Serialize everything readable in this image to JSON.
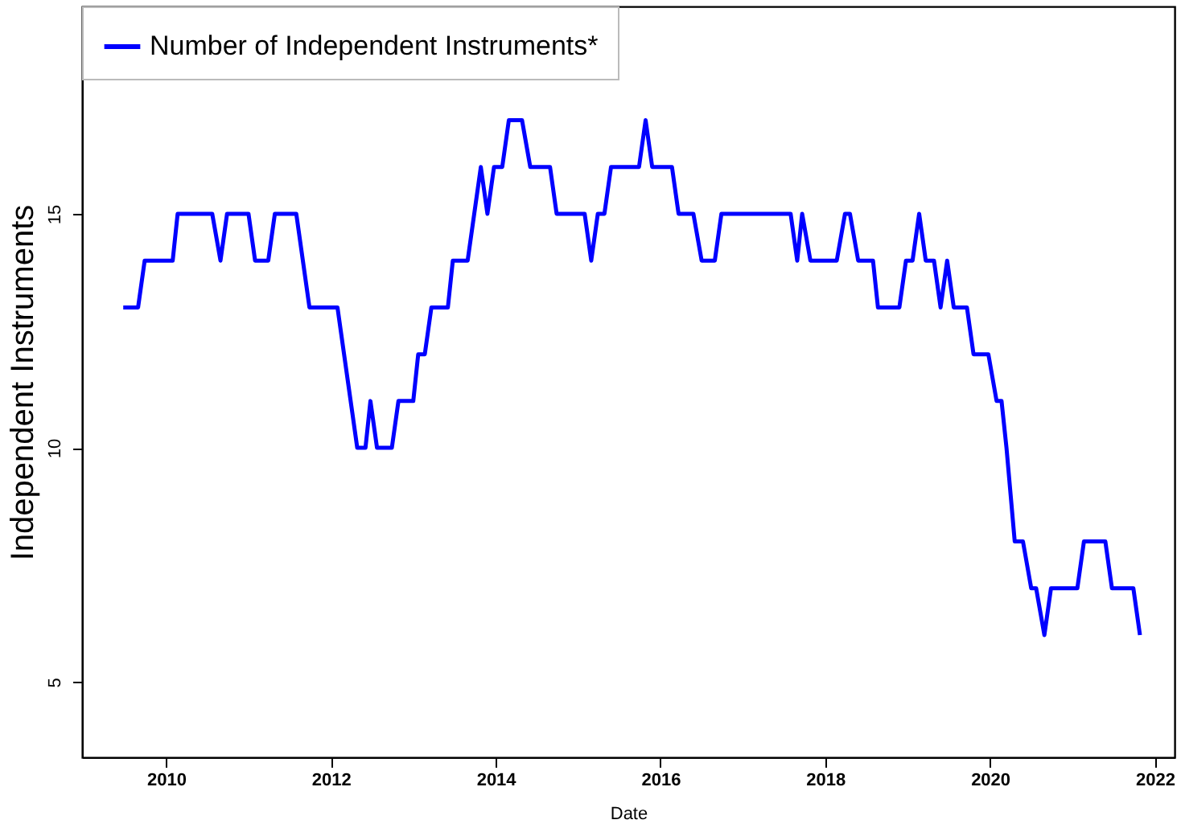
{
  "chart_data": {
    "type": "line",
    "xlabel": "Date",
    "ylabel": "Independent Instruments",
    "xlim": [
      2008.98,
      2022.24
    ],
    "xticks": [
      2010,
      2012,
      2014,
      2016,
      2018,
      2020,
      2022
    ],
    "ylim": [
      3.39,
      19.43
    ],
    "yticks": [
      5,
      10,
      15
    ],
    "grid": false,
    "legend": "top left",
    "marker": "none",
    "line_style": "solid",
    "series": [
      {
        "name": "Number of Independent Instruments*",
        "color": "#0000ff",
        "x": [
          2009.48,
          2009.66,
          2009.74,
          2010.08,
          2010.14,
          2010.56,
          2010.66,
          2010.74,
          2011.0,
          2011.08,
          2011.24,
          2011.32,
          2011.58,
          2011.74,
          2012.08,
          2012.32,
          2012.42,
          2012.48,
          2012.56,
          2012.74,
          2012.82,
          2013.0,
          2013.06,
          2013.14,
          2013.22,
          2013.42,
          2013.48,
          2013.66,
          2013.82,
          2013.9,
          2013.98,
          2014.08,
          2014.16,
          2014.32,
          2014.42,
          2014.66,
          2014.74,
          2015.08,
          2015.16,
          2015.24,
          2015.32,
          2015.4,
          2015.74,
          2015.82,
          2015.9,
          2016.14,
          2016.22,
          2016.4,
          2016.5,
          2016.66,
          2016.74,
          2017.58,
          2017.66,
          2017.72,
          2017.82,
          2018.14,
          2018.24,
          2018.3,
          2018.4,
          2018.58,
          2018.64,
          2018.9,
          2018.98,
          2019.06,
          2019.14,
          2019.22,
          2019.32,
          2019.4,
          2019.48,
          2019.56,
          2019.72,
          2019.8,
          2019.98,
          2020.08,
          2020.14,
          2020.2,
          2020.25,
          2020.3,
          2020.4,
          2020.5,
          2020.56,
          2020.66,
          2020.74,
          2021.06,
          2021.14,
          2021.4,
          2021.48,
          2021.74,
          2021.82
        ],
        "values": [
          13,
          13,
          14,
          14,
          15,
          15,
          14,
          15,
          15,
          14,
          14,
          15,
          15,
          13,
          13,
          10,
          10,
          11,
          10,
          10,
          11,
          11,
          12,
          12,
          13,
          13,
          14,
          14,
          16,
          15,
          16,
          16,
          17,
          17,
          16,
          16,
          15,
          15,
          14,
          15,
          15,
          16,
          16,
          17,
          16,
          16,
          15,
          15,
          14,
          14,
          15,
          15,
          14,
          15,
          14,
          14,
          15,
          15,
          14,
          14,
          13,
          13,
          14,
          14,
          15,
          14,
          14,
          13,
          14,
          13,
          13,
          12,
          12,
          11,
          11,
          10,
          9,
          8,
          8,
          7,
          7,
          6,
          7,
          7,
          8,
          8,
          7,
          7,
          6
        ]
      }
    ]
  }
}
